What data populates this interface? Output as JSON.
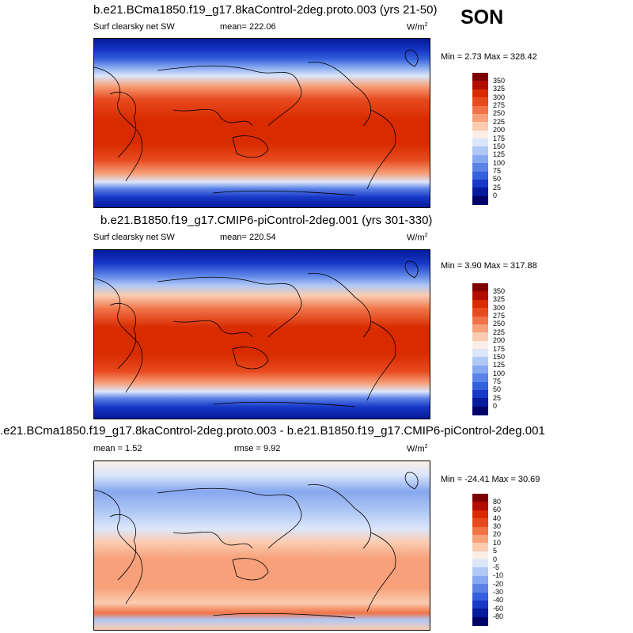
{
  "season": "SON",
  "panels": [
    {
      "title": "b.e21.BCma1850.f19_g17.8kaControl-2deg.proto.003 (yrs 21-50)",
      "left_label": "Surf clearsky net SW",
      "center_label": "mean= 222.06",
      "units": "W/m",
      "units_sup": "2",
      "minmax": "Min =  2.73 Max = 328.42",
      "colorbar": {
        "labels": [
          "350",
          "325",
          "300",
          "275",
          "250",
          "225",
          "200",
          "175",
          "150",
          "125",
          "100",
          "75",
          "50",
          "25",
          "0"
        ],
        "colors": [
          "#7f0000",
          "#b30d00",
          "#d92b00",
          "#e84a1f",
          "#f07448",
          "#f7a07a",
          "#fbccb0",
          "#fbeee6",
          "#dbe6fb",
          "#b0c8f5",
          "#86a8ef",
          "#5b82e6",
          "#3460dd",
          "#1838c8",
          "#051a9c",
          "#00006b"
        ]
      }
    },
    {
      "title": "b.e21.B1850.f19_g17.CMIP6-piControl-2deg.001 (yrs 301-330)",
      "left_label": "Surf clearsky net SW",
      "center_label": "mean= 220.54",
      "units": "W/m",
      "units_sup": "2",
      "minmax": "Min =  3.90 Max = 317.88",
      "colorbar": {
        "labels": [
          "350",
          "325",
          "300",
          "275",
          "250",
          "225",
          "200",
          "175",
          "150",
          "125",
          "100",
          "75",
          "50",
          "25",
          "0"
        ],
        "colors": [
          "#7f0000",
          "#b30d00",
          "#d92b00",
          "#e84a1f",
          "#f07448",
          "#f7a07a",
          "#fbccb0",
          "#fbeee6",
          "#dbe6fb",
          "#b0c8f5",
          "#86a8ef",
          "#5b82e6",
          "#3460dd",
          "#1838c8",
          "#051a9c",
          "#00006b"
        ]
      }
    },
    {
      "title": ".e21.BCma1850.f19_g17.8kaControl-2deg.proto.003 - b.e21.B1850.f19_g17.CMIP6-piControl-2deg.001",
      "left_label": "mean =   1.52",
      "center_label": "rmse =   9.92",
      "units": "W/m",
      "units_sup": "2",
      "minmax": "Min = -24.41 Max =  30.69",
      "colorbar": {
        "labels": [
          "80",
          "60",
          "40",
          "30",
          "20",
          "10",
          "5",
          "0",
          "-5",
          "-10",
          "-20",
          "-30",
          "-40",
          "-60",
          "-80"
        ],
        "colors": [
          "#7f0000",
          "#b30d00",
          "#d92b00",
          "#e84a1f",
          "#f07448",
          "#f7a07a",
          "#fbccb0",
          "#fbeee6",
          "#dbe6fb",
          "#b0c8f5",
          "#86a8ef",
          "#5b82e6",
          "#3460dd",
          "#1838c8",
          "#051a9c",
          "#00006b"
        ]
      }
    }
  ]
}
